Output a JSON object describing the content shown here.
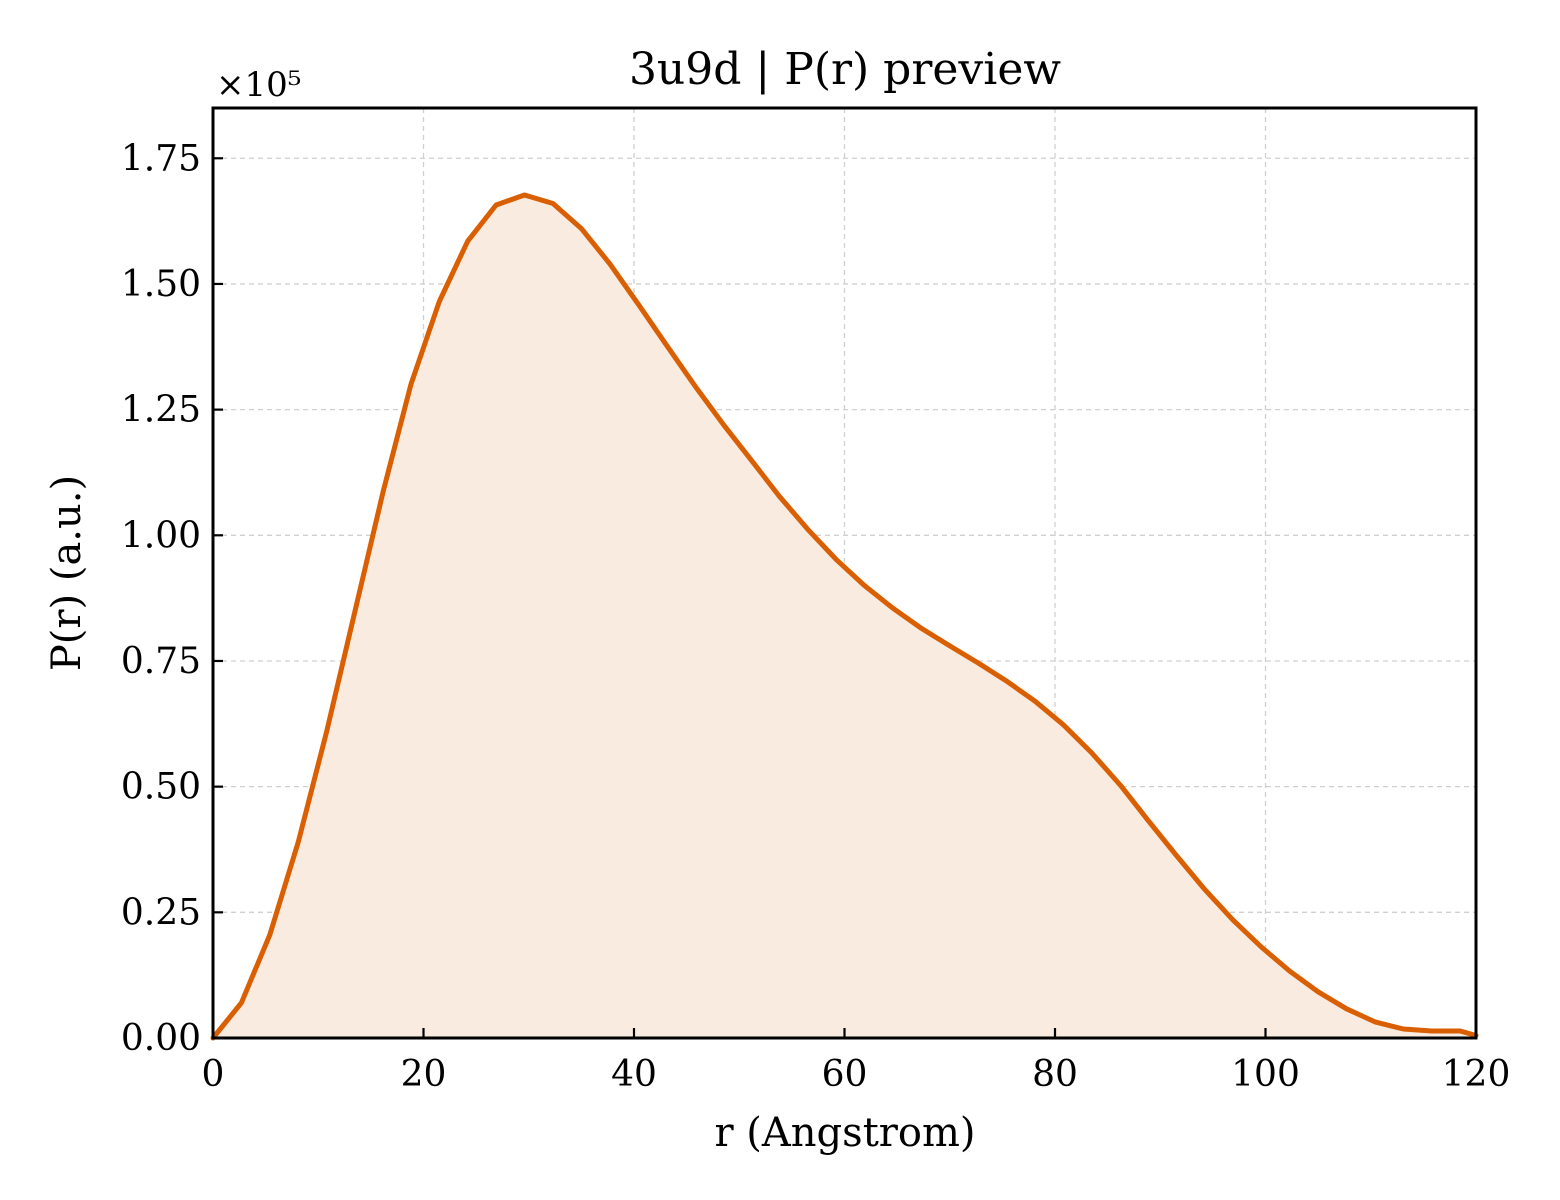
{
  "chart_data": {
    "type": "area",
    "title": "3u9d | P(r) preview",
    "xlabel": "r (Angstrom)",
    "ylabel": "P(r) (a.u.)",
    "y_scale_label": "×10⁵",
    "xlim": [
      0,
      120
    ],
    "ylim": [
      0,
      1.85
    ],
    "xticks": [
      "0",
      "20",
      "40",
      "60",
      "80",
      "100",
      "120"
    ],
    "xtick_values": [
      0,
      20,
      40,
      60,
      80,
      100,
      120
    ],
    "yticks": [
      "0.00",
      "0.25",
      "0.50",
      "0.75",
      "1.00",
      "1.25",
      "1.50",
      "1.75"
    ],
    "ytick_values": [
      0,
      0.25,
      0.5,
      0.75,
      1.0,
      1.25,
      1.5,
      1.75
    ],
    "grid": true,
    "line_color": "#d95f02",
    "fill_color": "#f9ebe0",
    "series": [
      {
        "x": [
          0,
          2.7,
          5.4,
          8.1,
          10.8,
          13.5,
          16.2,
          18.8,
          21.5,
          24.2,
          26.9,
          29.6,
          32.3,
          35.0,
          37.7,
          40.4,
          43.1,
          45.8,
          48.5,
          51.2,
          53.8,
          56.5,
          59.2,
          61.9,
          64.6,
          67.3,
          70.0,
          72.7,
          75.4,
          78.1,
          80.8,
          83.5,
          86.2,
          88.8,
          91.5,
          94.2,
          96.9,
          99.6,
          102.3,
          105.0,
          107.7,
          110.4,
          113.1,
          115.8,
          118.5,
          120
        ],
        "y": [
          0.0,
          0.07,
          0.205,
          0.39,
          0.61,
          0.85,
          1.09,
          1.3,
          1.465,
          1.585,
          1.657,
          1.677,
          1.66,
          1.61,
          1.54,
          1.46,
          1.378,
          1.297,
          1.22,
          1.148,
          1.078,
          1.012,
          0.952,
          0.9,
          0.855,
          0.815,
          0.78,
          0.746,
          0.71,
          0.67,
          0.623,
          0.567,
          0.503,
          0.434,
          0.364,
          0.296,
          0.235,
          0.181,
          0.133,
          0.092,
          0.058,
          0.032,
          0.018,
          0.014,
          0.014,
          0.005
        ]
      }
    ]
  }
}
